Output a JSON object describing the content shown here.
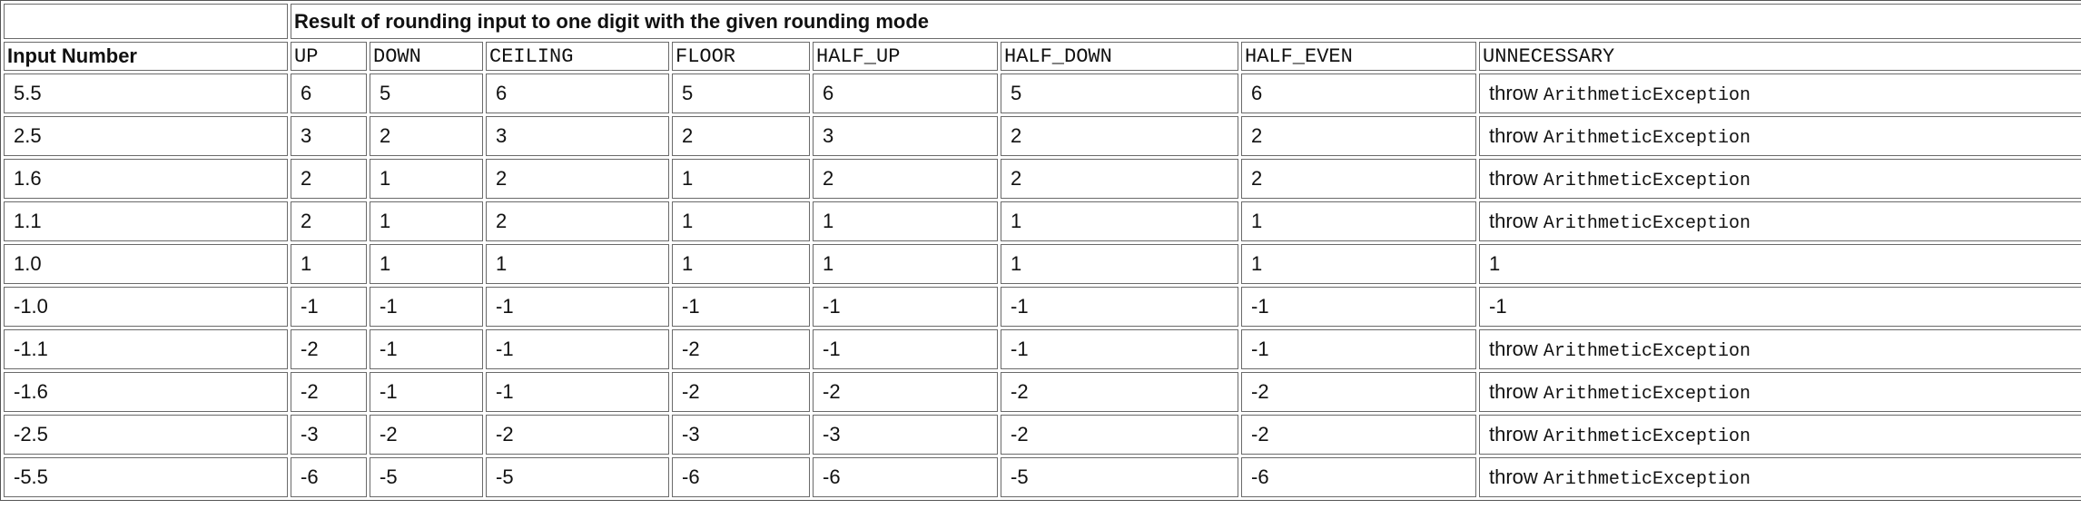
{
  "table": {
    "caption": "Result of rounding input to one digit with the given rounding mode",
    "input_header": "Input Number",
    "mode_headers": [
      "UP",
      "DOWN",
      "CEILING",
      "FLOOR",
      "HALF_UP",
      "HALF_DOWN",
      "HALF_EVEN",
      "UNNECESSARY"
    ],
    "throw_word": "throw",
    "exception_name": "ArithmeticException",
    "rows": [
      {
        "input": "5.5",
        "up": "6",
        "down": "5",
        "ceiling": "6",
        "floor": "5",
        "half_up": "6",
        "half_down": "5",
        "half_even": "6",
        "unnecessary": null
      },
      {
        "input": "2.5",
        "up": "3",
        "down": "2",
        "ceiling": "3",
        "floor": "2",
        "half_up": "3",
        "half_down": "2",
        "half_even": "2",
        "unnecessary": null
      },
      {
        "input": "1.6",
        "up": "2",
        "down": "1",
        "ceiling": "2",
        "floor": "1",
        "half_up": "2",
        "half_down": "2",
        "half_even": "2",
        "unnecessary": null
      },
      {
        "input": "1.1",
        "up": "2",
        "down": "1",
        "ceiling": "2",
        "floor": "1",
        "half_up": "1",
        "half_down": "1",
        "half_even": "1",
        "unnecessary": null
      },
      {
        "input": "1.0",
        "up": "1",
        "down": "1",
        "ceiling": "1",
        "floor": "1",
        "half_up": "1",
        "half_down": "1",
        "half_even": "1",
        "unnecessary": "1"
      },
      {
        "input": "-1.0",
        "up": "-1",
        "down": "-1",
        "ceiling": "-1",
        "floor": "-1",
        "half_up": "-1",
        "half_down": "-1",
        "half_even": "-1",
        "unnecessary": "-1"
      },
      {
        "input": "-1.1",
        "up": "-2",
        "down": "-1",
        "ceiling": "-1",
        "floor": "-2",
        "half_up": "-1",
        "half_down": "-1",
        "half_even": "-1",
        "unnecessary": null
      },
      {
        "input": "-1.6",
        "up": "-2",
        "down": "-1",
        "ceiling": "-1",
        "floor": "-2",
        "half_up": "-2",
        "half_down": "-2",
        "half_even": "-2",
        "unnecessary": null
      },
      {
        "input": "-2.5",
        "up": "-3",
        "down": "-2",
        "ceiling": "-2",
        "floor": "-3",
        "half_up": "-3",
        "half_down": "-2",
        "half_even": "-2",
        "unnecessary": null
      },
      {
        "input": "-5.5",
        "up": "-6",
        "down": "-5",
        "ceiling": "-5",
        "floor": "-6",
        "half_up": "-6",
        "half_down": "-5",
        "half_even": "-6",
        "unnecessary": null
      }
    ]
  }
}
